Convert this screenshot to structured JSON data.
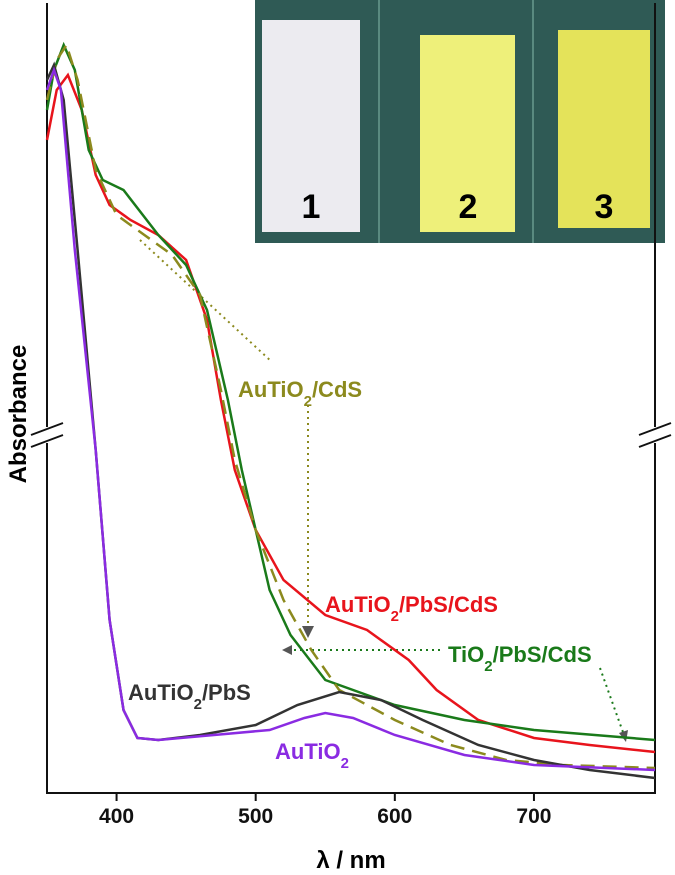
{
  "chart_data": {
    "type": "line",
    "xlabel": "λ / nm",
    "ylabel": "Absorbance",
    "xlim": [
      350,
      787
    ],
    "ylim": [
      0,
      790
    ],
    "xticks": [
      400,
      500,
      600,
      700
    ],
    "series": [
      {
        "name": "AuTiO2/PbS/CdS",
        "color": "#e8141c",
        "dashed": false,
        "x": [
          350,
          357,
          365,
          375,
          385,
          395,
          410,
          430,
          450,
          465,
          475,
          485,
          500,
          520,
          550,
          580,
          610,
          630,
          660,
          700,
          740,
          787
        ],
        "values": [
          653,
          703,
          718,
          683,
          618,
          588,
          573,
          558,
          533,
          473,
          393,
          323,
          263,
          213,
          178,
          163,
          133,
          103,
          73,
          55,
          48,
          41
        ]
      },
      {
        "name": "TiO2/PbS/CdS",
        "color": "#1a7a1a",
        "dashed": false,
        "x": [
          350,
          355,
          362,
          370,
          380,
          390,
          405,
          430,
          450,
          465,
          480,
          490,
          500,
          510,
          525,
          550,
          600,
          650,
          700,
          787
        ],
        "values": [
          683,
          723,
          748,
          723,
          643,
          613,
          603,
          558,
          528,
          483,
          393,
          323,
          263,
          203,
          158,
          113,
          88,
          73,
          63,
          53
        ]
      },
      {
        "name": "AuTiO2/CdS",
        "color": "#8c8a1e",
        "dashed": true,
        "x": [
          350,
          357,
          364,
          372,
          385,
          400,
          420,
          440,
          460,
          475,
          485,
          500,
          520,
          540,
          560,
          600,
          640,
          680,
          720,
          787
        ],
        "values": [
          693,
          733,
          748,
          713,
          623,
          578,
          558,
          538,
          498,
          403,
          333,
          263,
          193,
          143,
          103,
          73,
          48,
          33,
          28,
          25
        ]
      },
      {
        "name": "AuTiO2/PbS",
        "color": "#333333",
        "dashed": false,
        "x": [
          350,
          355,
          362,
          372,
          385,
          395,
          405,
          415,
          430,
          460,
          500,
          530,
          560,
          590,
          620,
          660,
          700,
          740,
          787
        ],
        "values": [
          713,
          728,
          693,
          543,
          343,
          173,
          83,
          55,
          53,
          58,
          68,
          88,
          101,
          93,
          73,
          48,
          33,
          23,
          15
        ]
      },
      {
        "name": "AuTiO2",
        "color": "#8a2be2",
        "dashed": false,
        "x": [
          350,
          355,
          360,
          370,
          385,
          395,
          405,
          415,
          430,
          470,
          510,
          535,
          550,
          570,
          600,
          650,
          700,
          787
        ],
        "values": [
          703,
          723,
          703,
          543,
          343,
          173,
          83,
          55,
          53,
          58,
          63,
          75,
          80,
          75,
          58,
          38,
          28,
          23
        ]
      }
    ]
  },
  "inset": {
    "labels": [
      "1",
      "2",
      "3"
    ]
  }
}
